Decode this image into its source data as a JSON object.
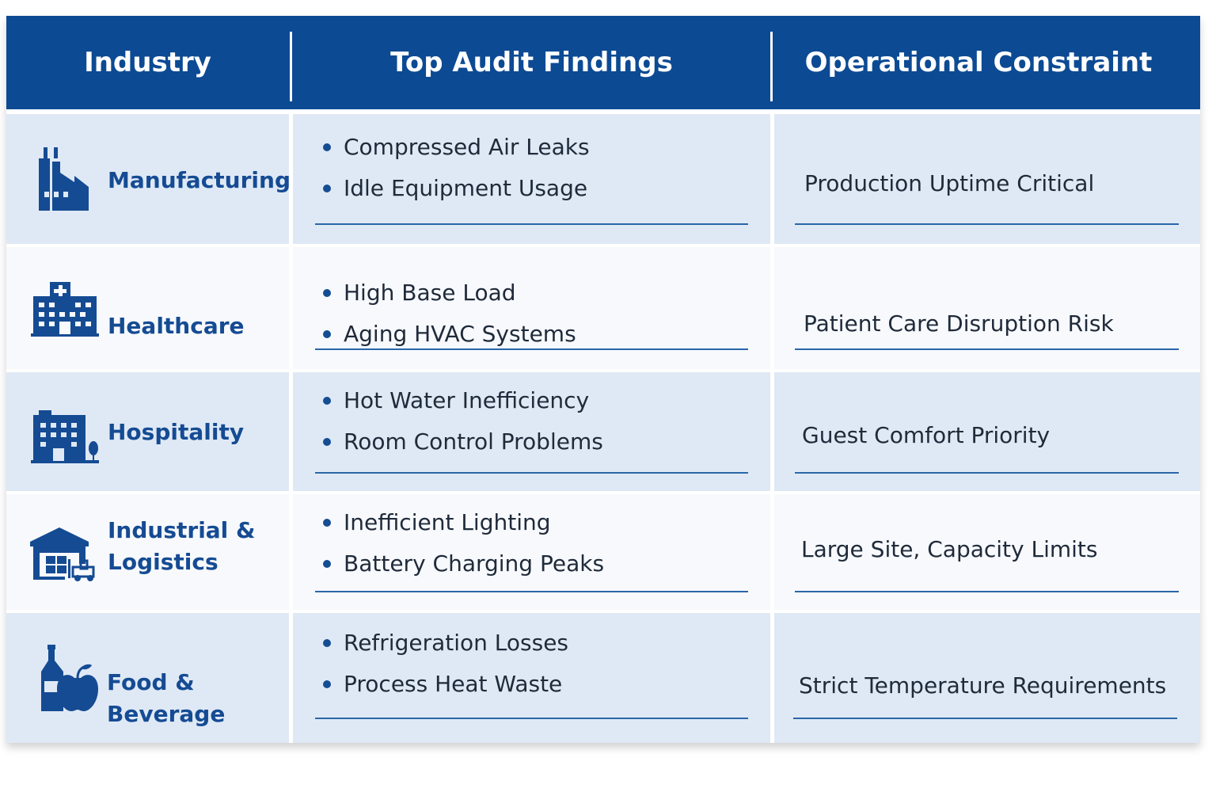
{
  "header": {
    "industry": "Industry",
    "findings": "Top Audit Findings",
    "constraint": "Operational Constraint"
  },
  "rows": [
    {
      "icon": "factory-icon",
      "industry": "Manufacturing",
      "findings": [
        "Compressed Air Leaks",
        "Idle Equipment Usage"
      ],
      "constraint": "Production Uptime Critical"
    },
    {
      "icon": "hospital-icon",
      "industry": "Healthcare",
      "findings": [
        "High Base Load",
        "Aging HVAC Systems"
      ],
      "constraint": "Patient Care Disruption Risk"
    },
    {
      "icon": "hotel-icon",
      "industry": "Hospitality",
      "findings": [
        "Hot Water Inefficiency",
        "Room Control Problems"
      ],
      "constraint": "Guest Comfort Priority"
    },
    {
      "icon": "warehouse-forklift-icon",
      "industry_lines": [
        "Industrial &",
        "Logistics"
      ],
      "findings": [
        "Inefficient Lighting",
        "Battery Charging Peaks"
      ],
      "constraint": "Large Site, Capacity Limits"
    },
    {
      "icon": "bottle-apple-icon",
      "industry": "Food & Beverage",
      "findings": [
        "Refrigeration Losses",
        "Process Heat Waste"
      ],
      "constraint": "Strict Temperature Requirements"
    }
  ],
  "colors": {
    "header_bg": "#0c4a94",
    "accent": "#154b93",
    "shaded_row": "#dfe9f5",
    "plain_row": "#f7f9fc"
  }
}
